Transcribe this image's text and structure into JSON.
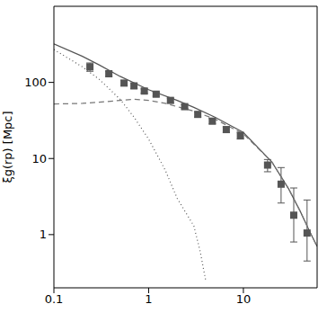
{
  "chart_data": {
    "type": "scatter",
    "y_label": "ξg(rp) [Mpc]",
    "log": true,
    "grid": false,
    "xlim": [
      0.1,
      60
    ],
    "xticks": [
      0.1,
      1,
      10
    ],
    "ylim": [
      0.2,
      1000
    ],
    "yticks": [
      1,
      10,
      100
    ],
    "series": [
      {
        "type": "scatter",
        "marker": "square",
        "color": "#555555",
        "x": [
          0.24,
          0.38,
          0.55,
          0.7,
          0.9,
          1.2,
          1.7,
          2.4,
          3.3,
          4.7,
          6.6,
          9.3,
          18,
          25,
          34,
          47
        ],
        "values": [
          160,
          130,
          98,
          90,
          77,
          70,
          58,
          48,
          38,
          31,
          24,
          20,
          8.2,
          4.6,
          1.8,
          1.05
        ],
        "errors": [
          [
            20,
            20
          ],
          [
            10,
            10
          ],
          [
            8,
            8
          ],
          [
            7,
            7
          ],
          [
            5,
            5
          ],
          [
            4,
            4
          ],
          [
            4,
            4
          ],
          [
            3,
            3
          ],
          [
            3,
            3
          ],
          [
            2.5,
            2.5
          ],
          [
            2,
            2
          ],
          [
            2,
            2
          ],
          [
            1.5,
            1.5
          ],
          [
            2,
            3
          ],
          [
            1,
            2.3
          ],
          [
            0.6,
            1.8
          ]
        ]
      },
      {
        "type": "line",
        "line_style": "solid",
        "color": "#555555",
        "x": [
          0.1,
          0.2,
          0.3,
          0.5,
          1,
          2,
          3,
          5,
          10,
          20,
          30,
          40,
          50,
          60
        ],
        "values": [
          320,
          220,
          170,
          120,
          80,
          58,
          47,
          35,
          22,
          9,
          4,
          2,
          1.1,
          0.7
        ]
      },
      {
        "type": "line",
        "line_style": "dotted",
        "color": "#555555",
        "x": [
          0.1,
          0.2,
          0.3,
          0.5,
          0.7,
          1,
          1.5,
          2,
          3,
          3.5,
          4
        ],
        "values": [
          270,
          160,
          110,
          60,
          35,
          18,
          7,
          3,
          1.3,
          0.6,
          0.25
        ]
      },
      {
        "type": "line",
        "line_style": "dashed",
        "color": "#777777",
        "x": [
          0.1,
          0.2,
          0.3,
          0.5,
          0.7,
          1,
          1.5,
          2,
          3,
          5,
          10,
          20,
          30,
          40,
          50,
          60
        ],
        "values": [
          52,
          53,
          55,
          58,
          60,
          58,
          53,
          48,
          42,
          33,
          21,
          9,
          4,
          2,
          1.1,
          0.7
        ]
      }
    ]
  }
}
